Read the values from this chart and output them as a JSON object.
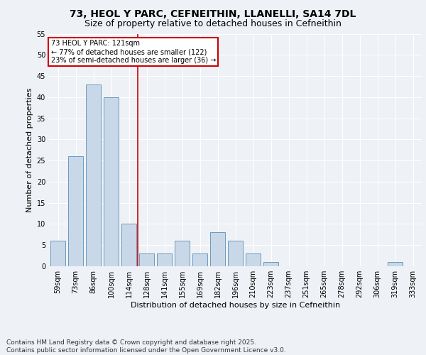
{
  "title1": "73, HEOL Y PARC, CEFNEITHIN, LLANELLI, SA14 7DL",
  "title2": "Size of property relative to detached houses in Cefneithin",
  "xlabel": "Distribution of detached houses by size in Cefneithin",
  "ylabel": "Number of detached properties",
  "categories": [
    "59sqm",
    "73sqm",
    "86sqm",
    "100sqm",
    "114sqm",
    "128sqm",
    "141sqm",
    "155sqm",
    "169sqm",
    "182sqm",
    "196sqm",
    "210sqm",
    "223sqm",
    "237sqm",
    "251sqm",
    "265sqm",
    "278sqm",
    "292sqm",
    "306sqm",
    "319sqm",
    "333sqm"
  ],
  "values": [
    6,
    26,
    43,
    40,
    10,
    3,
    3,
    6,
    3,
    8,
    6,
    3,
    1,
    0,
    0,
    0,
    0,
    0,
    0,
    1,
    0
  ],
  "bar_color": "#c8d8e8",
  "bar_edge_color": "#5b8db8",
  "vline_x": 4.5,
  "vline_color": "#cc0000",
  "annotation_text": "73 HEOL Y PARC: 121sqm\n← 77% of detached houses are smaller (122)\n23% of semi-detached houses are larger (36) →",
  "annotation_box_color": "#ffffff",
  "annotation_box_edge_color": "#cc0000",
  "ylim": [
    0,
    55
  ],
  "yticks": [
    0,
    5,
    10,
    15,
    20,
    25,
    30,
    35,
    40,
    45,
    50,
    55
  ],
  "footer": "Contains HM Land Registry data © Crown copyright and database right 2025.\nContains public sector information licensed under the Open Government Licence v3.0.",
  "bg_color": "#eef2f6",
  "plot_bg_color": "#eef2f6",
  "title_fontsize": 10,
  "subtitle_fontsize": 9,
  "axis_fontsize": 8,
  "tick_fontsize": 7,
  "footer_fontsize": 6.5
}
